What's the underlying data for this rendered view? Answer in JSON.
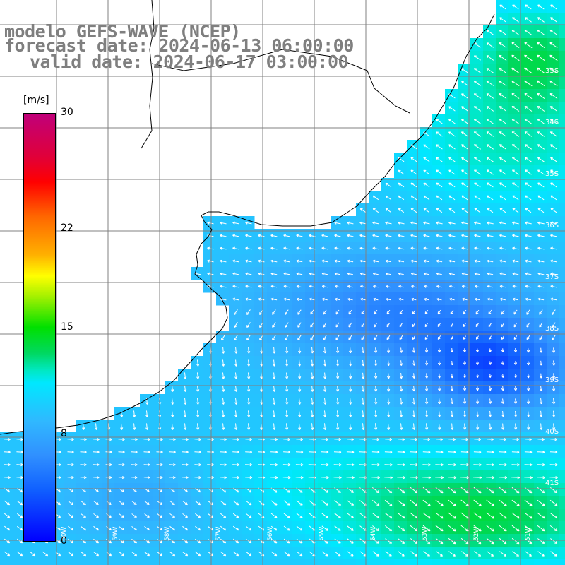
{
  "titles": {
    "line1": "modelo GEFS-WAVE (NCEP)",
    "line2": "forecast date: 2024-06-13 06:00:00",
    "line3": "valid date: 2024-06-17 03:00:00"
  },
  "colorbar": {
    "unit": "[m/s]",
    "ticks": [
      {
        "value": "30",
        "frac": 1.0
      },
      {
        "value": "22",
        "frac": 0.73
      },
      {
        "value": "15",
        "frac": 0.5
      },
      {
        "value": "8",
        "frac": 0.25
      },
      {
        "value": "0",
        "frac": 0.0
      }
    ],
    "colors": [
      "#0000ff",
      "#1060ff",
      "#3090ff",
      "#30b8ff",
      "#00e8ff",
      "#00e8c0",
      "#00d860",
      "#00e000",
      "#9ff000",
      "#ffff00",
      "#ffb000",
      "#ff6600",
      "#ff0000",
      "#e0003a",
      "#c0007a"
    ]
  },
  "lat_labels": [
    "33S",
    "34S",
    "35S",
    "36S",
    "37S",
    "38S",
    "39S",
    "40S",
    "41S"
  ],
  "lon_labels": [
    "60W",
    "59W",
    "58W",
    "57W",
    "56W",
    "55W",
    "54W",
    "53W",
    "52W",
    "51W"
  ],
  "colors": {
    "land": "#ffffff",
    "coast": "#000000",
    "grid": "#808080",
    "arrow": "#ffffff"
  }
}
